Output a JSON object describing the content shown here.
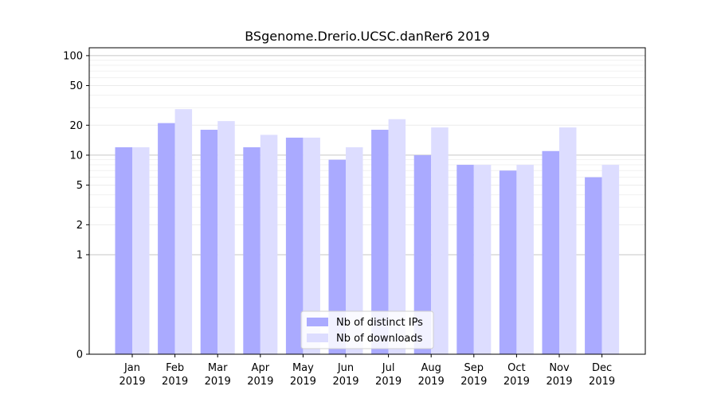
{
  "chart_data": {
    "type": "bar",
    "title": "BSgenome.Drerio.UCSC.danRer6 2019",
    "xlabel": "",
    "ylabel": "",
    "yscale": "symlog",
    "ylim": [
      0,
      120
    ],
    "yticks": [
      0,
      1,
      2,
      5,
      10,
      20,
      50,
      100
    ],
    "grid": true,
    "legend_position": "bottom-center",
    "categories": [
      {
        "month": "Jan",
        "year": "2019"
      },
      {
        "month": "Feb",
        "year": "2019"
      },
      {
        "month": "Mar",
        "year": "2019"
      },
      {
        "month": "Apr",
        "year": "2019"
      },
      {
        "month": "May",
        "year": "2019"
      },
      {
        "month": "Jun",
        "year": "2019"
      },
      {
        "month": "Jul",
        "year": "2019"
      },
      {
        "month": "Aug",
        "year": "2019"
      },
      {
        "month": "Sep",
        "year": "2019"
      },
      {
        "month": "Oct",
        "year": "2019"
      },
      {
        "month": "Nov",
        "year": "2019"
      },
      {
        "month": "Dec",
        "year": "2019"
      }
    ],
    "series": [
      {
        "name": "Nb of distinct IPs",
        "color": "#aaaaff",
        "values": [
          12,
          21,
          18,
          12,
          15,
          9,
          18,
          10,
          8,
          7,
          11,
          6
        ]
      },
      {
        "name": "Nb of downloads",
        "color": "#ddddff",
        "values": [
          12,
          29,
          22,
          16,
          15,
          12,
          23,
          19,
          8,
          8,
          19,
          8
        ]
      }
    ]
  }
}
